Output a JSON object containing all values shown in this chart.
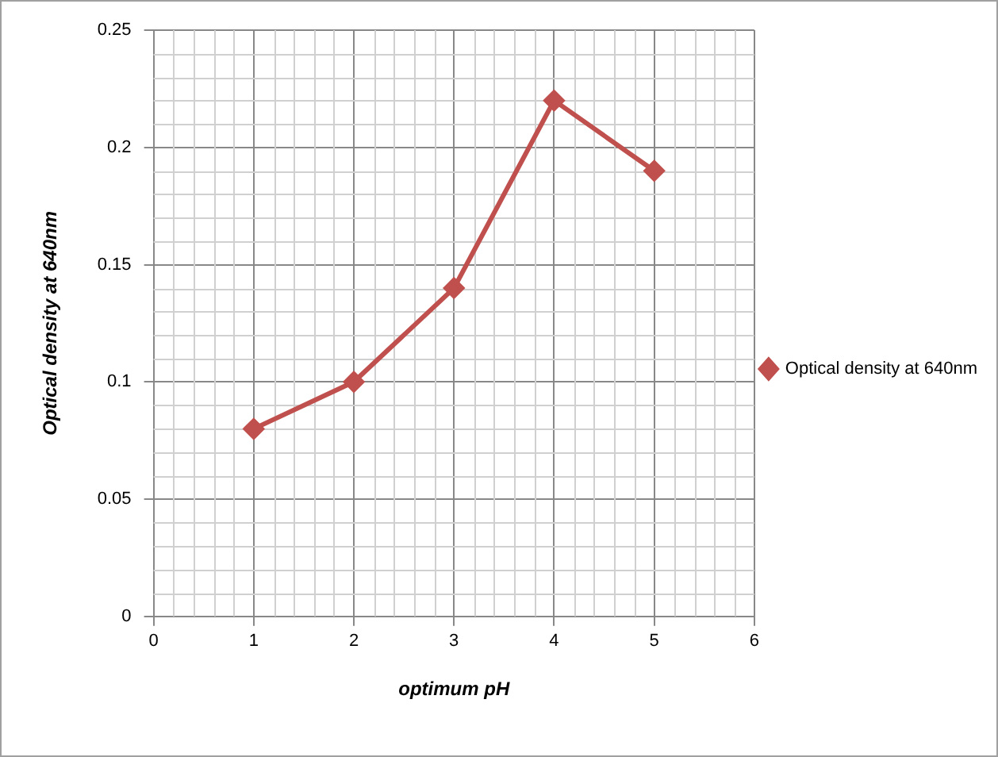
{
  "chart_data": {
    "type": "line",
    "xlabel": "optimum pH",
    "ylabel": "Optical density at 640nm",
    "x": [
      1,
      2,
      3,
      4,
      5
    ],
    "series": [
      {
        "name": "Optical density at 640nm",
        "color": "#c0504d",
        "values": [
          0.08,
          0.1,
          0.14,
          0.22,
          0.19
        ]
      }
    ],
    "xlim": [
      0,
      6
    ],
    "xticks": [
      0,
      1,
      2,
      3,
      4,
      5,
      6
    ],
    "ylim": [
      0,
      0.25
    ],
    "yticks": [
      0,
      0.05,
      0.1,
      0.15,
      0.2,
      0.25
    ],
    "grid": true,
    "legend": "right",
    "marker": "diamond",
    "line_style": "solid"
  }
}
